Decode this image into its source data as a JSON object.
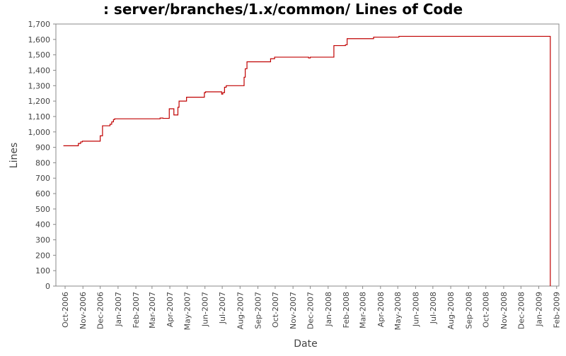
{
  "chart_data": {
    "type": "line",
    "title": ": server/branches/1.x/common/ Lines of Code",
    "xlabel": "Date",
    "ylabel": "Lines",
    "ylim": [
      0,
      1700
    ],
    "y_ticks": [
      0,
      100,
      200,
      300,
      400,
      500,
      600,
      700,
      800,
      900,
      1000,
      1100,
      1200,
      1300,
      1400,
      1500,
      1600,
      1700
    ],
    "y_tick_labels": [
      "0",
      "100",
      "200",
      "300",
      "400",
      "500",
      "600",
      "700",
      "800",
      "900",
      "1,000",
      "1,100",
      "1,200",
      "1,300",
      "1,400",
      "1,500",
      "1,600",
      "1,700"
    ],
    "x_range": [
      "2006-09-15",
      "2009-02-05"
    ],
    "x_ticks": [
      "2006-10-01",
      "2006-11-01",
      "2006-12-01",
      "2007-01-01",
      "2007-02-01",
      "2007-03-01",
      "2007-04-01",
      "2007-05-01",
      "2007-06-01",
      "2007-07-01",
      "2007-08-01",
      "2007-09-01",
      "2007-10-01",
      "2007-11-01",
      "2007-12-01",
      "2008-01-01",
      "2008-02-01",
      "2008-03-01",
      "2008-04-01",
      "2008-05-01",
      "2008-06-01",
      "2008-07-01",
      "2008-08-01",
      "2008-09-01",
      "2008-10-01",
      "2008-11-01",
      "2008-12-01",
      "2009-01-01",
      "2009-02-01"
    ],
    "x_tick_labels": [
      "Oct-2006",
      "Nov-2006",
      "Dec-2006",
      "Jan-2007",
      "Feb-2007",
      "Mar-2007",
      "Apr-2007",
      "May-2007",
      "Jun-2007",
      "Jul-2007",
      "Aug-2007",
      "Sep-2007",
      "Oct-2007",
      "Nov-2007",
      "Dec-2007",
      "Jan-2008",
      "Feb-2008",
      "Mar-2008",
      "Apr-2008",
      "May-2008",
      "Jun-2008",
      "Jul-2008",
      "Aug-2008",
      "Sep-2008",
      "Oct-2008",
      "Nov-2008",
      "Dec-2008",
      "Jan-2009",
      "Feb-2009"
    ],
    "grid": false,
    "series": [
      {
        "color": "#c00000",
        "step": true,
        "points": [
          [
            "2006-09-28",
            910
          ],
          [
            "2006-10-24",
            925
          ],
          [
            "2006-10-28",
            935
          ],
          [
            "2006-10-31",
            940
          ],
          [
            "2006-12-01",
            975
          ],
          [
            "2006-12-05",
            1040
          ],
          [
            "2006-12-18",
            1050
          ],
          [
            "2006-12-21",
            1065
          ],
          [
            "2006-12-24",
            1080
          ],
          [
            "2006-12-26",
            1085
          ],
          [
            "2007-03-15",
            1090
          ],
          [
            "2007-03-20",
            1088
          ],
          [
            "2007-03-31",
            1150
          ],
          [
            "2007-04-08",
            1110
          ],
          [
            "2007-04-15",
            1160
          ],
          [
            "2007-04-17",
            1200
          ],
          [
            "2007-04-30",
            1225
          ],
          [
            "2007-05-31",
            1255
          ],
          [
            "2007-06-02",
            1260
          ],
          [
            "2007-06-30",
            1245
          ],
          [
            "2007-07-02",
            1255
          ],
          [
            "2007-07-05",
            1290
          ],
          [
            "2007-07-08",
            1300
          ],
          [
            "2007-08-08",
            1355
          ],
          [
            "2007-08-10",
            1410
          ],
          [
            "2007-08-13",
            1455
          ],
          [
            "2007-09-23",
            1475
          ],
          [
            "2007-09-30",
            1485
          ],
          [
            "2007-11-28",
            1480
          ],
          [
            "2007-12-01",
            1485
          ],
          [
            "2008-01-11",
            1560
          ],
          [
            "2008-01-31",
            1565
          ],
          [
            "2008-02-03",
            1605
          ],
          [
            "2008-03-20",
            1615
          ],
          [
            "2008-05-03",
            1620
          ],
          [
            "2009-01-21",
            1620
          ],
          [
            "2009-01-21",
            0
          ]
        ]
      }
    ]
  }
}
